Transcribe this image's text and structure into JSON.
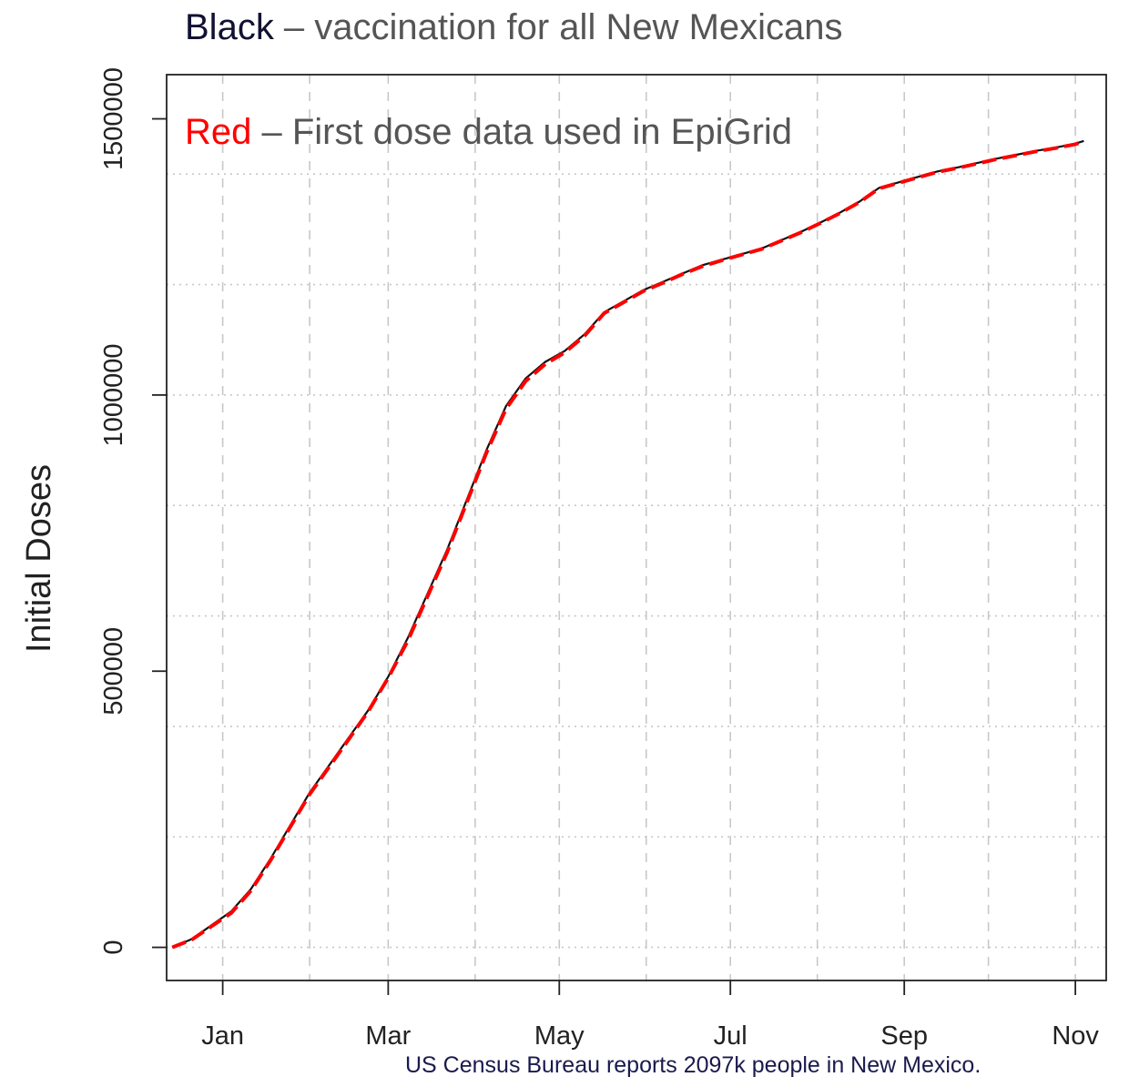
{
  "header": {
    "black_word": "Black",
    "black_rest": " – vaccination for all New Mexicans",
    "red_word": "Red",
    "red_rest": " – First dose data used in EpiGrid"
  },
  "footnote": "US Census Bureau reports 2097k people in New Mexico.",
  "colors": {
    "black_series": "#111111",
    "red_series": "#ff0000",
    "grid": "#c8c8c8"
  },
  "chart_data": {
    "type": "line",
    "xlabel": "",
    "ylabel": "Initial Doses",
    "x_tick_labels": [
      "Jan",
      "Mar",
      "May",
      "Jul",
      "Sep",
      "Nov"
    ],
    "x_tick_dates": [
      "2021-01-01",
      "2021-03-01",
      "2021-05-01",
      "2021-07-01",
      "2021-09-01",
      "2021-11-01"
    ],
    "xlim": [
      "2020-12-12",
      "2021-11-12"
    ],
    "y_tick_labels": [
      "0",
      "500000",
      "1000000",
      "1500000"
    ],
    "y_ticks": [
      0,
      500000,
      1000000,
      1500000
    ],
    "ylim": [
      -60000,
      1580000
    ],
    "grid": true,
    "series": [
      {
        "name": "Black",
        "color": "#111111",
        "style": "solid",
        "x": [
          "2020-12-14",
          "2020-12-21",
          "2020-12-28",
          "2021-01-04",
          "2021-01-11",
          "2021-01-18",
          "2021-01-25",
          "2021-02-01",
          "2021-02-08",
          "2021-02-15",
          "2021-02-22",
          "2021-03-01",
          "2021-03-08",
          "2021-03-15",
          "2021-03-22",
          "2021-03-29",
          "2021-04-05",
          "2021-04-12",
          "2021-04-19",
          "2021-04-26",
          "2021-05-03",
          "2021-05-10",
          "2021-05-17",
          "2021-05-24",
          "2021-05-31",
          "2021-06-07",
          "2021-06-14",
          "2021-06-21",
          "2021-06-28",
          "2021-07-05",
          "2021-07-12",
          "2021-07-19",
          "2021-07-26",
          "2021-08-02",
          "2021-08-09",
          "2021-08-16",
          "2021-08-23",
          "2021-08-30",
          "2021-09-06",
          "2021-09-13",
          "2021-09-20",
          "2021-09-27",
          "2021-10-04",
          "2021-10-11",
          "2021-10-18",
          "2021-10-25",
          "2021-11-01",
          "2021-11-04"
        ],
        "y": [
          0,
          15000,
          40000,
          65000,
          105000,
          160000,
          220000,
          280000,
          330000,
          380000,
          430000,
          490000,
          560000,
          640000,
          720000,
          810000,
          900000,
          980000,
          1030000,
          1060000,
          1080000,
          1110000,
          1150000,
          1170000,
          1190000,
          1205000,
          1220000,
          1235000,
          1245000,
          1255000,
          1265000,
          1280000,
          1295000,
          1312000,
          1330000,
          1350000,
          1375000,
          1385000,
          1395000,
          1405000,
          1412000,
          1420000,
          1428000,
          1435000,
          1442000,
          1448000,
          1455000,
          1460000
        ]
      },
      {
        "name": "Red",
        "color": "#ff0000",
        "style": "dashed",
        "x": [
          "2020-12-14",
          "2020-12-21",
          "2020-12-28",
          "2021-01-04",
          "2021-01-11",
          "2021-01-18",
          "2021-01-25",
          "2021-02-01",
          "2021-02-08",
          "2021-02-15",
          "2021-02-22",
          "2021-03-01",
          "2021-03-08",
          "2021-03-15",
          "2021-03-22",
          "2021-03-29",
          "2021-04-05",
          "2021-04-12",
          "2021-04-19",
          "2021-04-26",
          "2021-05-03",
          "2021-05-10",
          "2021-05-17",
          "2021-05-24",
          "2021-05-31",
          "2021-06-07",
          "2021-06-14",
          "2021-06-21",
          "2021-06-28",
          "2021-07-05",
          "2021-07-12",
          "2021-07-19",
          "2021-07-26",
          "2021-08-02",
          "2021-08-09",
          "2021-08-16",
          "2021-08-23",
          "2021-08-30",
          "2021-09-06",
          "2021-09-13",
          "2021-09-20",
          "2021-09-27",
          "2021-10-04",
          "2021-10-11",
          "2021-10-18",
          "2021-10-25",
          "2021-11-01",
          "2021-11-04"
        ],
        "y": [
          0,
          14000,
          38000,
          62000,
          102000,
          157000,
          217000,
          277000,
          327000,
          377000,
          428000,
          488000,
          555000,
          635000,
          715000,
          805000,
          895000,
          975000,
          1025000,
          1056000,
          1077000,
          1107000,
          1148000,
          1168000,
          1188000,
          1203000,
          1219000,
          1233000,
          1244000,
          1254000,
          1264000,
          1279000,
          1294000,
          1311000,
          1329000,
          1349000,
          1374000,
          1384000,
          1394000,
          1404000,
          1411000,
          1419000,
          1427000,
          1434000,
          1441000,
          1447000,
          1454000,
          1459000
        ]
      }
    ]
  }
}
